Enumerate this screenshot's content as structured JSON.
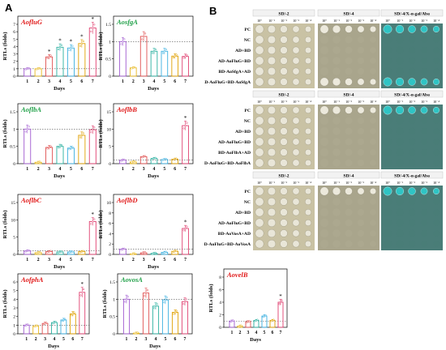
{
  "figure": {
    "panel_a_letter": "A",
    "panel_b_letter": "B",
    "x_axis_label": "Days",
    "y_axis_label": "RTLs (folds)",
    "day_ticks": [
      "1",
      "2",
      "3",
      "4",
      "5",
      "6",
      "7"
    ],
    "significance_mark": "*"
  },
  "colors": {
    "day_colors": [
      "#a05ad0",
      "#e8b820",
      "#e05050",
      "#2ab0a0",
      "#3bb0e0",
      "#e0a000",
      "#e04070"
    ],
    "red_title": "#e01818",
    "green_title": "#20a048"
  },
  "chart_data": [
    {
      "type": "bar",
      "gene": "AofluG",
      "title_color": "red",
      "ylim": [
        0,
        7
      ],
      "yticks": [
        0,
        1,
        2,
        3,
        4,
        5,
        6,
        7
      ],
      "categories": [
        "1",
        "2",
        "3",
        "4",
        "5",
        "6",
        "7"
      ],
      "values": [
        1.0,
        1.0,
        2.6,
        3.9,
        3.8,
        4.4,
        6.5
      ],
      "significant": [
        false,
        false,
        true,
        true,
        true,
        true,
        true
      ]
    },
    {
      "type": "bar",
      "gene": "AosfgA",
      "title_color": "green",
      "ylim": [
        0,
        1.5
      ],
      "yticks": [
        0,
        0.5,
        1.0,
        1.5
      ],
      "categories": [
        "1",
        "2",
        "3",
        "4",
        "5",
        "6",
        "7"
      ],
      "values": [
        1.0,
        0.24,
        1.15,
        0.72,
        0.72,
        0.58,
        0.57
      ],
      "significant": [
        false,
        false,
        false,
        false,
        false,
        false,
        false
      ]
    },
    {
      "type": "bar",
      "gene": "AoflbA",
      "title_color": "green",
      "ylim": [
        0,
        1.5
      ],
      "yticks": [
        0,
        0.5,
        1.0,
        1.5
      ],
      "categories": [
        "1",
        "2",
        "3",
        "4",
        "5",
        "6",
        "7"
      ],
      "values": [
        1.0,
        0.04,
        0.47,
        0.5,
        0.45,
        0.82,
        0.98
      ],
      "significant": [
        false,
        false,
        false,
        false,
        false,
        false,
        false
      ]
    },
    {
      "type": "bar",
      "gene": "AoflbB",
      "title_color": "red",
      "ylim": [
        0,
        15
      ],
      "yticks": [
        0,
        5,
        10,
        15
      ],
      "categories": [
        "1",
        "2",
        "3",
        "4",
        "5",
        "6",
        "7"
      ],
      "values": [
        1.0,
        0.5,
        2.0,
        1.5,
        1.2,
        1.3,
        11.0
      ],
      "significant": [
        false,
        false,
        false,
        false,
        false,
        false,
        true
      ]
    },
    {
      "type": "bar",
      "gene": "AoflbC",
      "title_color": "red",
      "ylim": [
        0,
        15
      ],
      "yticks": [
        0,
        5,
        10,
        15
      ],
      "categories": [
        "1",
        "2",
        "3",
        "4",
        "5",
        "6",
        "7"
      ],
      "values": [
        1.0,
        0.5,
        0.8,
        0.7,
        0.7,
        0.8,
        9.5
      ],
      "significant": [
        false,
        false,
        false,
        false,
        false,
        false,
        true
      ]
    },
    {
      "type": "bar",
      "gene": "AoflbD",
      "title_color": "red",
      "ylim": [
        0,
        10
      ],
      "yticks": [
        0,
        2,
        4,
        6,
        8,
        10
      ],
      "categories": [
        "1",
        "2",
        "3",
        "4",
        "5",
        "6",
        "7"
      ],
      "values": [
        1.0,
        0.1,
        0.3,
        0.2,
        0.4,
        0.6,
        5.0
      ],
      "significant": [
        false,
        false,
        false,
        false,
        false,
        false,
        true
      ]
    },
    {
      "type": "bar",
      "gene": "AofphA",
      "title_color": "red",
      "ylim": [
        0,
        6
      ],
      "yticks": [
        0,
        1,
        2,
        3,
        4,
        5,
        6
      ],
      "categories": [
        "1",
        "2",
        "3",
        "4",
        "5",
        "6",
        "7"
      ],
      "values": [
        1.0,
        0.9,
        1.2,
        1.3,
        1.6,
        2.3,
        4.8
      ],
      "significant": [
        false,
        false,
        false,
        false,
        false,
        false,
        true
      ]
    },
    {
      "type": "bar",
      "gene": "AovosA",
      "title_color": "green",
      "ylim": [
        0,
        1.5
      ],
      "yticks": [
        0,
        0.5,
        1.0,
        1.5
      ],
      "categories": [
        "1",
        "2",
        "3",
        "4",
        "5",
        "6",
        "7"
      ],
      "values": [
        1.0,
        0.02,
        1.18,
        0.8,
        0.98,
        0.62,
        0.93
      ],
      "significant": [
        false,
        false,
        false,
        false,
        false,
        false,
        false
      ]
    },
    {
      "type": "bar",
      "gene": "AovelB",
      "title_color": "red",
      "ylim": [
        0,
        8
      ],
      "yticks": [
        0,
        2,
        4,
        6,
        8
      ],
      "categories": [
        "1",
        "2",
        "3",
        "4",
        "5",
        "6",
        "7"
      ],
      "values": [
        1.0,
        0.2,
        0.9,
        1.1,
        1.8,
        1.1,
        4.0
      ],
      "significant": [
        false,
        false,
        false,
        false,
        false,
        false,
        true
      ]
    }
  ],
  "y2h": {
    "column_headers": [
      "SD/-2",
      "SD/-4",
      "SD/-4/X-α-gal/Aba"
    ],
    "dilutions": [
      "10⁰",
      "10⁻¹",
      "10⁻²",
      "10⁻³",
      "10⁻⁴"
    ],
    "blocks": [
      {
        "rows": [
          "PC",
          "NC",
          "AD+BD",
          "AD-AoFluG+BD",
          "BD-AoSfgA+AD",
          "AD-AoFluG+BD-AoSfgA"
        ],
        "sd4_growth": [
          5,
          0,
          0,
          0,
          0,
          5
        ],
        "xgal_growth": [
          5,
          0,
          0,
          0,
          0,
          5
        ]
      },
      {
        "rows": [
          "PC",
          "NC",
          "AD+BD",
          "AD-AoFluG+BD",
          "BD-AoFlbA+AD",
          "BD-AoFluG+BD-AoFlbA"
        ],
        "sd4_growth": [
          5,
          0,
          0,
          0,
          0,
          0
        ],
        "xgal_growth": [
          5,
          0,
          0,
          0,
          0,
          0
        ]
      },
      {
        "rows": [
          "PC",
          "NC",
          "AD+BD",
          "AD-AoFluG+BD",
          "BD-AoVosA+AD",
          "AD-AoFluG+BD-AoVosA"
        ],
        "sd4_growth": [
          5,
          0,
          0,
          0,
          0,
          0
        ],
        "xgal_growth": [
          5,
          0,
          0,
          0,
          0,
          0
        ]
      }
    ]
  }
}
